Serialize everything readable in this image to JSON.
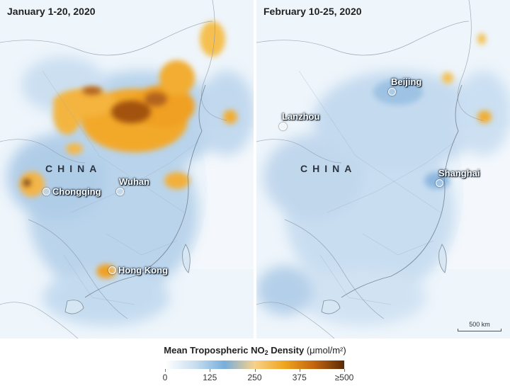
{
  "panels": [
    {
      "title": "January 1-20, 2020",
      "country_label": "CHINA",
      "cities": [
        "Chongqing",
        "Wuhan",
        "Hong Kong"
      ]
    },
    {
      "title": "February 10-25, 2020",
      "country_label": "CHINA",
      "cities": [
        "Lanzhou",
        "Beijing",
        "Shanghai"
      ],
      "scalebar": "500 km"
    }
  ],
  "legend": {
    "title_prefix": "Mean Tropospheric NO",
    "title_subscript": "2",
    "title_suffix": " Density",
    "unit": "(μmol/m²)",
    "ticks": [
      "0",
      "125",
      "250",
      "375",
      "≥500"
    ],
    "tick_values": [
      0,
      125,
      250,
      375,
      500
    ],
    "colors": [
      "#ffffff",
      "#c8def0",
      "#78aedb",
      "#f7d18a",
      "#f0a51d",
      "#c26410",
      "#5a2a05"
    ]
  }
}
